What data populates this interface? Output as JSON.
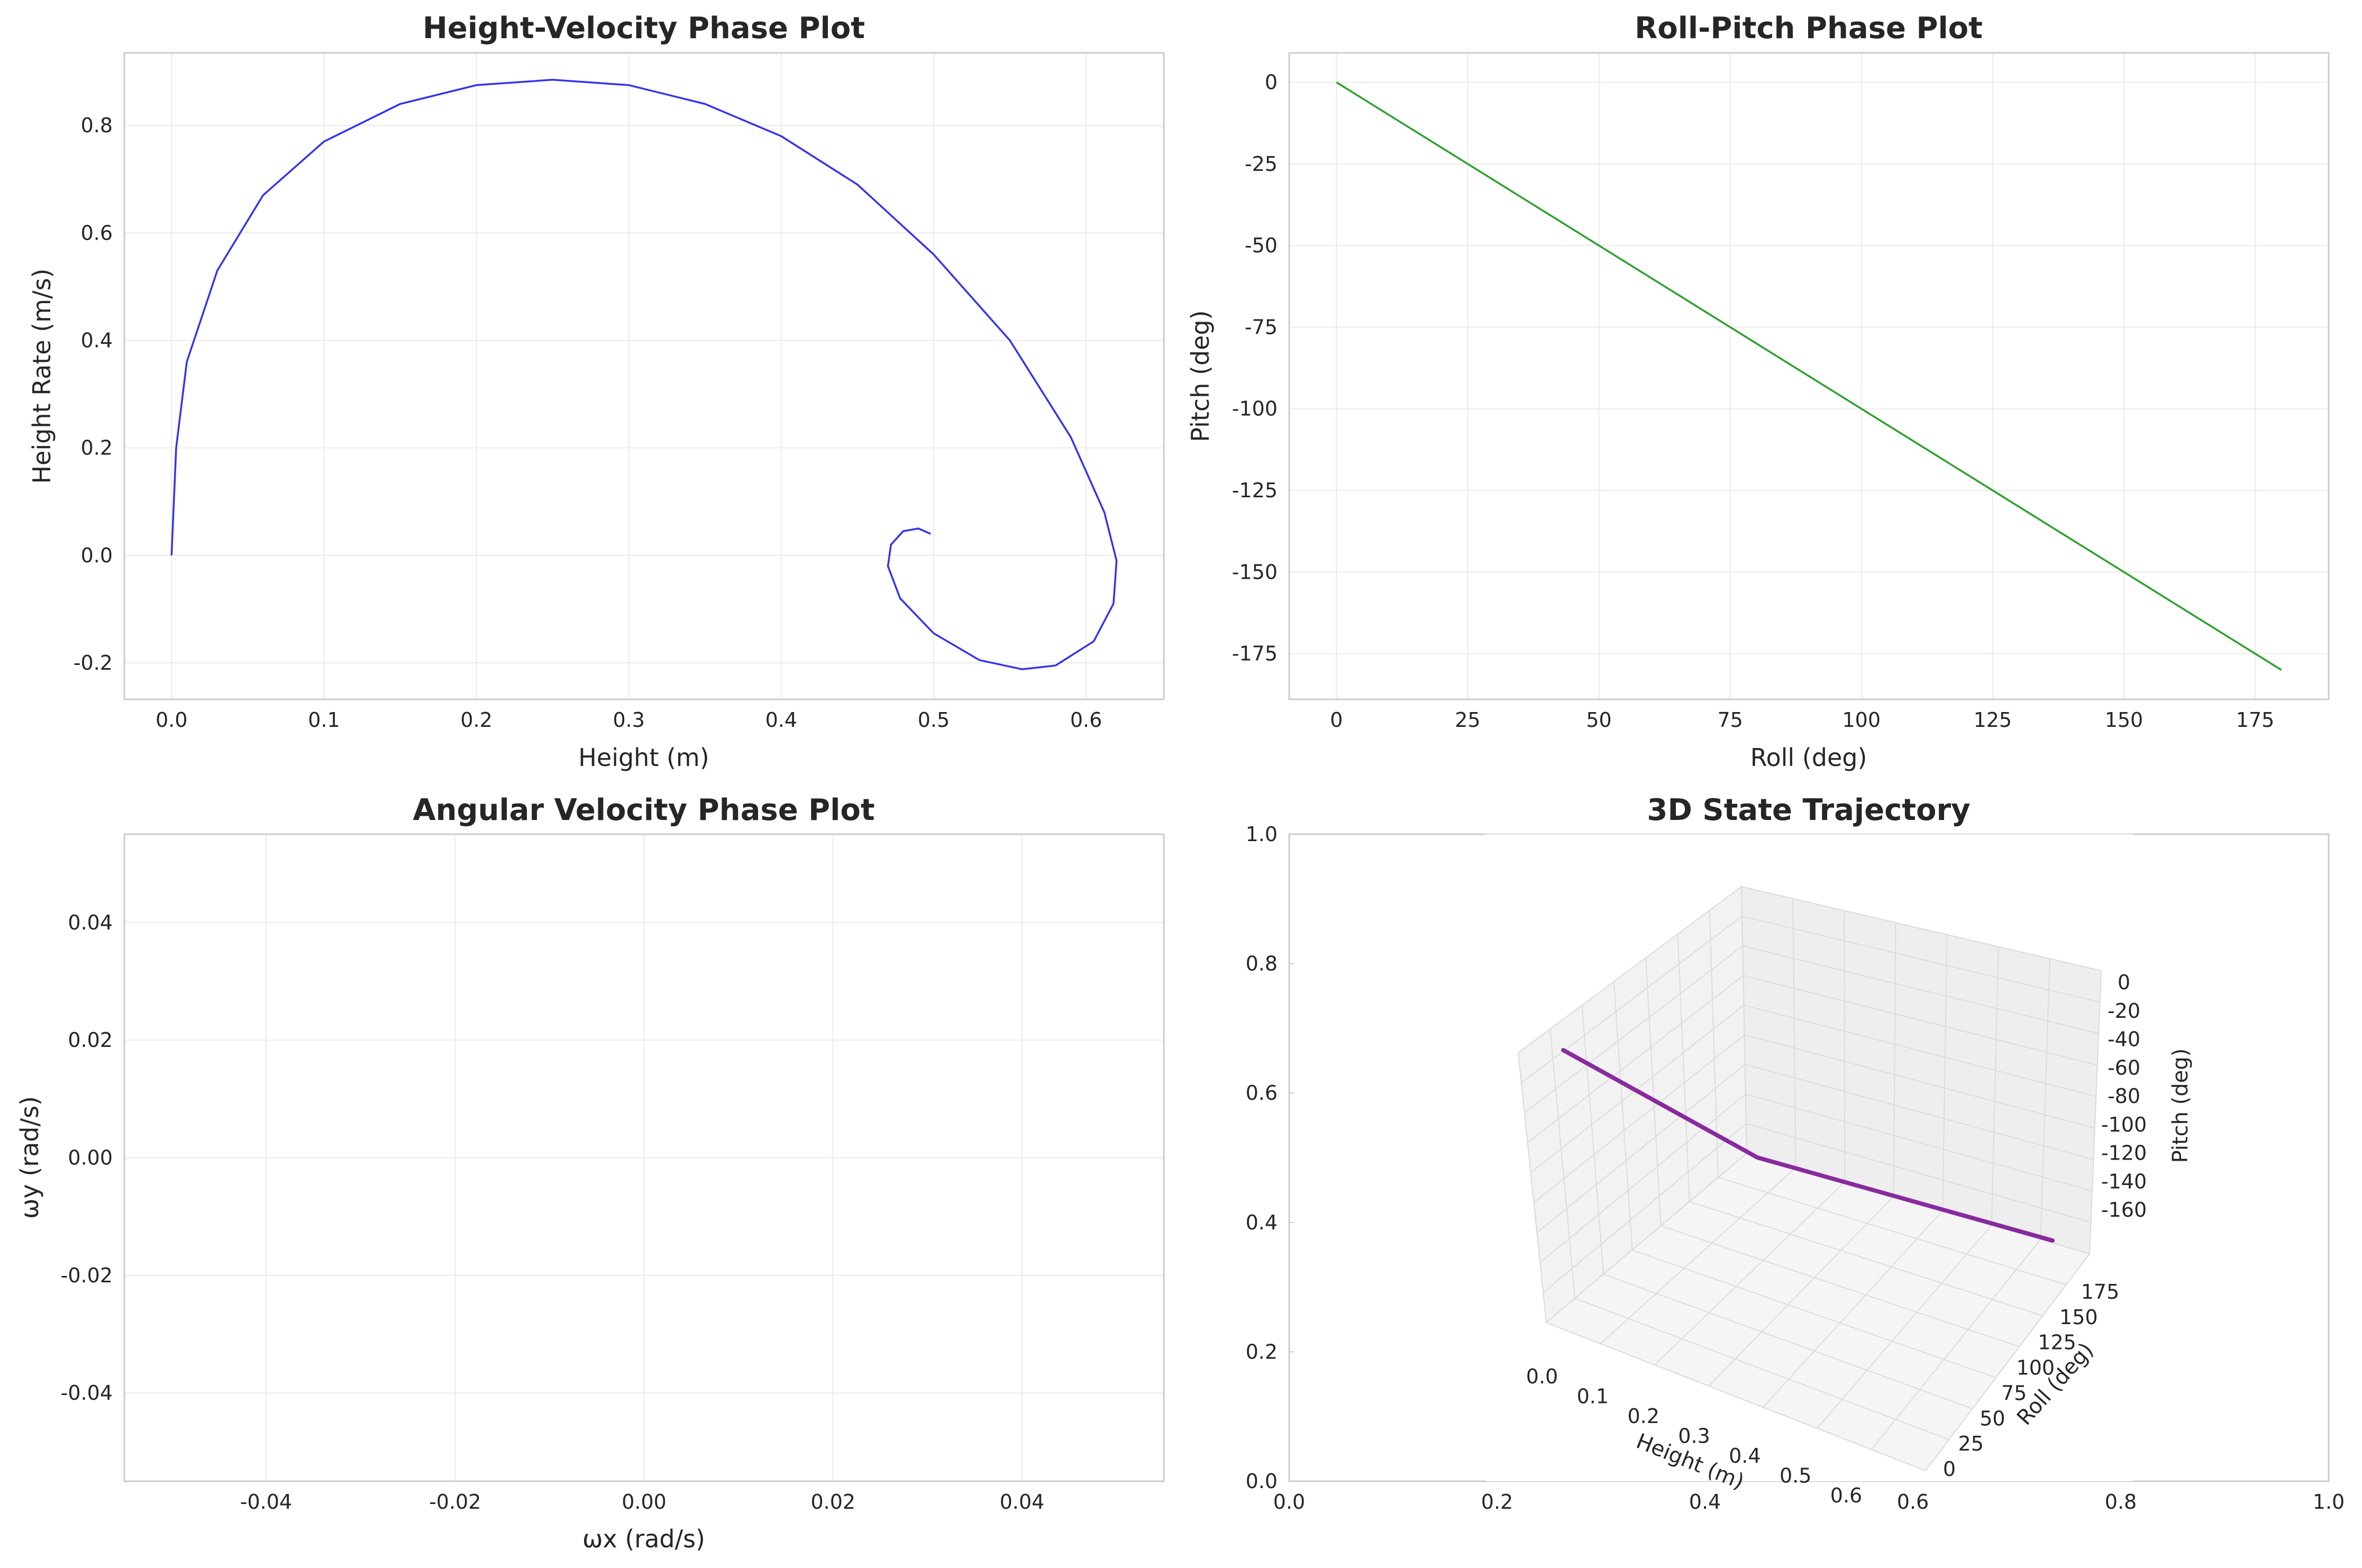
{
  "chart_data": [
    {
      "id": "hv",
      "type": "line",
      "title": "Height-Velocity Phase Plot",
      "xlabel": "Height (m)",
      "ylabel": "Height Rate (m/s)",
      "xlim": [
        -0.031,
        0.651
      ],
      "ylim": [
        -0.268,
        0.935
      ],
      "xticks": [
        0.0,
        0.1,
        0.2,
        0.3,
        0.4,
        0.5,
        0.6
      ],
      "xticklabels": [
        "0.0",
        "0.1",
        "0.2",
        "0.3",
        "0.4",
        "0.5",
        "0.6"
      ],
      "yticks": [
        -0.2,
        0.0,
        0.2,
        0.4,
        0.6,
        0.8
      ],
      "yticklabels": [
        "-0.2",
        "0.0",
        "0.2",
        "0.4",
        "0.6",
        "0.8"
      ],
      "grid": true,
      "color": "#3333ee",
      "series": [
        {
          "x": [
            0.0,
            0.003,
            0.01,
            0.03,
            0.06,
            0.1,
            0.15,
            0.2,
            0.25,
            0.3,
            0.35,
            0.4,
            0.45,
            0.5,
            0.55,
            0.59,
            0.612,
            0.62,
            0.618,
            0.605,
            0.58,
            0.558,
            0.53,
            0.5,
            0.478,
            0.47,
            0.472,
            0.48,
            0.49,
            0.498
          ],
          "y": [
            0.0,
            0.2,
            0.36,
            0.53,
            0.67,
            0.77,
            0.84,
            0.875,
            0.885,
            0.875,
            0.84,
            0.78,
            0.69,
            0.56,
            0.4,
            0.22,
            0.08,
            -0.01,
            -0.09,
            -0.16,
            -0.205,
            -0.212,
            -0.195,
            -0.145,
            -0.08,
            -0.02,
            0.02,
            0.045,
            0.05,
            0.04
          ]
        }
      ]
    },
    {
      "id": "rp",
      "type": "line",
      "title": "Roll-Pitch Phase Plot",
      "xlabel": "Roll (deg)",
      "ylabel": "Pitch (deg)",
      "xlim": [
        -9,
        189
      ],
      "ylim": [
        -189,
        9
      ],
      "xticks": [
        0,
        25,
        50,
        75,
        100,
        125,
        150,
        175
      ],
      "xticklabels": [
        "0",
        "25",
        "50",
        "75",
        "100",
        "125",
        "150",
        "175"
      ],
      "yticks": [
        0,
        -25,
        -50,
        -75,
        -100,
        -125,
        -150,
        -175
      ],
      "yticklabels": [
        "0",
        "-25",
        "-50",
        "-75",
        "-100",
        "-125",
        "-150",
        "-175"
      ],
      "grid": true,
      "color": "#2ca02c",
      "series": [
        {
          "x": [
            0,
            180
          ],
          "y": [
            0,
            -180
          ]
        }
      ]
    },
    {
      "id": "av",
      "type": "line",
      "title": "Angular Velocity Phase Plot",
      "xlabel": "ωx (rad/s)",
      "ylabel": "ωy (rad/s)",
      "xlim": [
        -0.055,
        0.055
      ],
      "ylim": [
        -0.055,
        0.055
      ],
      "xticks": [
        -0.04,
        -0.02,
        0.0,
        0.02,
        0.04
      ],
      "xticklabels": [
        "-0.04",
        "-0.02",
        "0.00",
        "0.02",
        "0.04"
      ],
      "yticks": [
        0.04,
        0.02,
        0.0,
        -0.02,
        -0.04
      ],
      "yticklabels": [
        "0.04",
        "0.02",
        "0.00",
        "-0.02",
        "-0.04"
      ],
      "grid": true,
      "series": []
    },
    {
      "id": "st",
      "type": "line",
      "title": "3D State Trajectory",
      "xlabel": "Height (m)",
      "ylabel": "Roll (deg)",
      "zlabel": "Pitch (deg)",
      "xlim": [
        0,
        1
      ],
      "ylim": [
        0,
        1
      ],
      "xticks": [
        0.0,
        0.2,
        0.4,
        0.6,
        0.8,
        1.0
      ],
      "xticklabels": [
        "0.0",
        "0.2",
        "0.4",
        "0.6",
        "0.8",
        "1.0"
      ],
      "yticks": [
        0.0,
        0.2,
        0.4,
        0.6,
        0.8,
        1.0
      ],
      "yticklabels": [
        "0.0",
        "0.2",
        "0.4",
        "0.6",
        "0.8",
        "1.0"
      ],
      "height_ticklabels": [
        "0.0",
        "0.1",
        "0.2",
        "0.3",
        "0.4",
        "0.5",
        "0.6"
      ],
      "roll_ticklabels": [
        "0",
        "25",
        "50",
        "75",
        "100",
        "125",
        "150",
        "175"
      ],
      "pitch_ticklabels": [
        "0",
        "-20",
        "-40",
        "-60",
        "-80",
        "-100",
        "-120",
        "-140",
        "-160"
      ],
      "color": "#882a9e",
      "series": [
        {
          "height": [
            0.0,
            0.6,
            0.0
          ],
          "roll": [
            0,
            0,
            180
          ],
          "pitch": [
            0,
            0,
            -180
          ]
        }
      ]
    }
  ]
}
